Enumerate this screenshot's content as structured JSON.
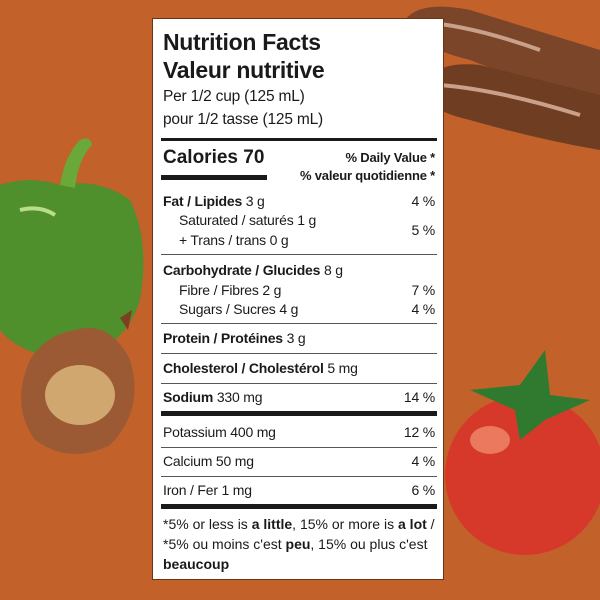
{
  "label": {
    "title_en": "Nutrition Facts",
    "title_fr": "Valeur nutritive",
    "serving_en": "Per 1/2 cup (125 mL)",
    "serving_fr": "pour 1/2 tasse (125 mL)",
    "calories_label": "Calories",
    "calories_value": "70",
    "dv_en": "% Daily Value *",
    "dv_fr": "% valeur quotidienne *",
    "rows": [
      {
        "name": "Fat / Lipides",
        "amount": "3 g",
        "dv": "4 %"
      },
      {
        "name": "Saturated / saturés",
        "amount": "1 g"
      },
      {
        "name": "+ Trans / trans",
        "amount": "0 g",
        "dv": "5 %"
      },
      {
        "name": "Carbohydrate / Glucides",
        "amount": "8 g"
      },
      {
        "name": "Fibre / Fibres",
        "amount": "2 g",
        "dv": "7 %"
      },
      {
        "name": "Sugars / Sucres",
        "amount": "4 g",
        "dv": "4 %"
      },
      {
        "name": "Protein / Protéines",
        "amount": "3 g"
      },
      {
        "name": "Cholesterol / Cholestérol",
        "amount": "5 mg"
      },
      {
        "name": "Sodium",
        "amount": "330 mg",
        "dv": "14 %"
      },
      {
        "name": "Potassium",
        "amount": "400 mg",
        "dv": "12 %"
      },
      {
        "name": "Calcium",
        "amount": "50 mg",
        "dv": "4 %"
      },
      {
        "name": "Iron / Fer",
        "amount": "1 mg",
        "dv": "6 %"
      }
    ],
    "footnote": {
      "p1": "*5% or less is ",
      "b1": "a little",
      ", p2": "",
      "p2": ", 15% or more is ",
      "b2": "a lot",
      "p3": " / *5% ou moins c'est ",
      "b3": "peu",
      "p4": ", 15% ou plus c'est ",
      "b4": "beaucoup"
    }
  },
  "colors": {
    "background": "#c2612a",
    "label": "#ffffff",
    "text": "#1a1a1a"
  }
}
